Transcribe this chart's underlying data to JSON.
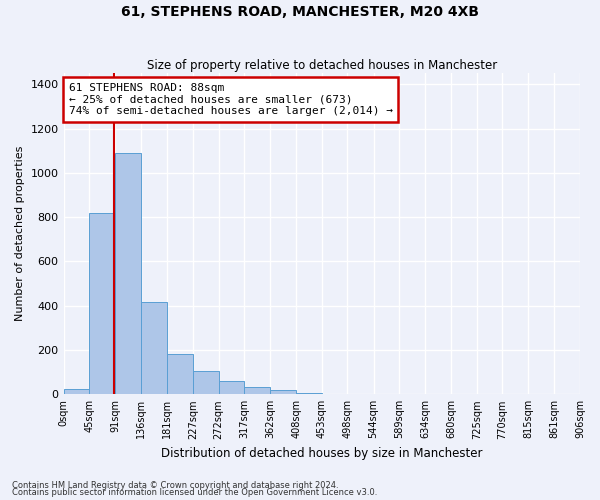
{
  "title1": "61, STEPHENS ROAD, MANCHESTER, M20 4XB",
  "title2": "Size of property relative to detached houses in Manchester",
  "xlabel": "Distribution of detached houses by size in Manchester",
  "ylabel": "Number of detached properties",
  "bar_values": [
    25,
    820,
    1090,
    415,
    180,
    105,
    58,
    35,
    20,
    8,
    3,
    2,
    1,
    1,
    0,
    0,
    0,
    0,
    0,
    0
  ],
  "bin_edges": [
    0,
    45,
    91,
    136,
    181,
    227,
    272,
    317,
    362,
    408,
    453,
    498,
    544,
    589,
    634,
    680,
    725,
    770,
    815,
    861,
    906
  ],
  "bar_color": "#aec6e8",
  "bar_edge_color": "#5a9fd4",
  "vline_color": "#cc0000",
  "vline_x": 88,
  "annotation_text": "61 STEPHENS ROAD: 88sqm\n← 25% of detached houses are smaller (673)\n74% of semi-detached houses are larger (2,014) →",
  "annotation_box_color": "#ffffff",
  "annotation_box_edge": "#cc0000",
  "ylim": [
    0,
    1450
  ],
  "yticks": [
    0,
    200,
    400,
    600,
    800,
    1000,
    1200,
    1400
  ],
  "footer1": "Contains HM Land Registry data © Crown copyright and database right 2024.",
  "footer2": "Contains public sector information licensed under the Open Government Licence v3.0.",
  "bg_color": "#eef1fa",
  "grid_color": "#ffffff"
}
